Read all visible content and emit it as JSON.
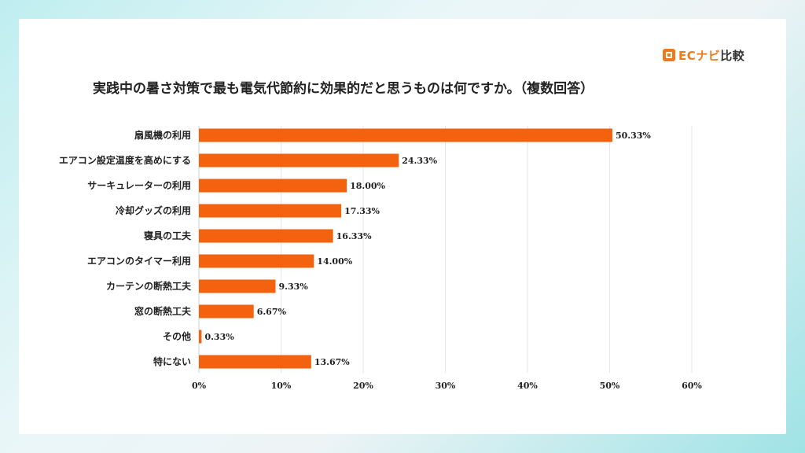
{
  "logo": {
    "brand": "EC",
    "name": "ナビ",
    "suffix": "比較"
  },
  "title": "実践中の暑さ対策で最も電気代節約に効果的だと思うものは何ですか。（複数回答）",
  "colors": {
    "bar": "#f2620f",
    "grid": "#e6e6e6",
    "text": "#222222"
  },
  "chart_data": {
    "type": "bar",
    "orientation": "horizontal",
    "categories": [
      "扇風機の利用",
      "エアコン設定温度を高めにする",
      "サーキュレーターの利用",
      "冷却グッズの利用",
      "寝具の工夫",
      "エアコンのタイマー利用",
      "カーテンの断熱工夫",
      "窓の断熱工夫",
      "その他",
      "特にない"
    ],
    "values": [
      50.33,
      24.33,
      18.0,
      17.33,
      16.33,
      14.0,
      9.33,
      6.67,
      0.33,
      13.67
    ],
    "value_labels": [
      "50.33%",
      "24.33%",
      "18.00%",
      "17.33%",
      "16.33%",
      "14.00%",
      "9.33%",
      "6.67%",
      "0.33%",
      "13.67%"
    ],
    "xlim": [
      0,
      60
    ],
    "xticks": [
      0,
      10,
      20,
      30,
      40,
      50,
      60
    ],
    "xtick_labels": [
      "0%",
      "10%",
      "20%",
      "30%",
      "40%",
      "50%",
      "60%"
    ],
    "grid": true,
    "legend": "none"
  }
}
